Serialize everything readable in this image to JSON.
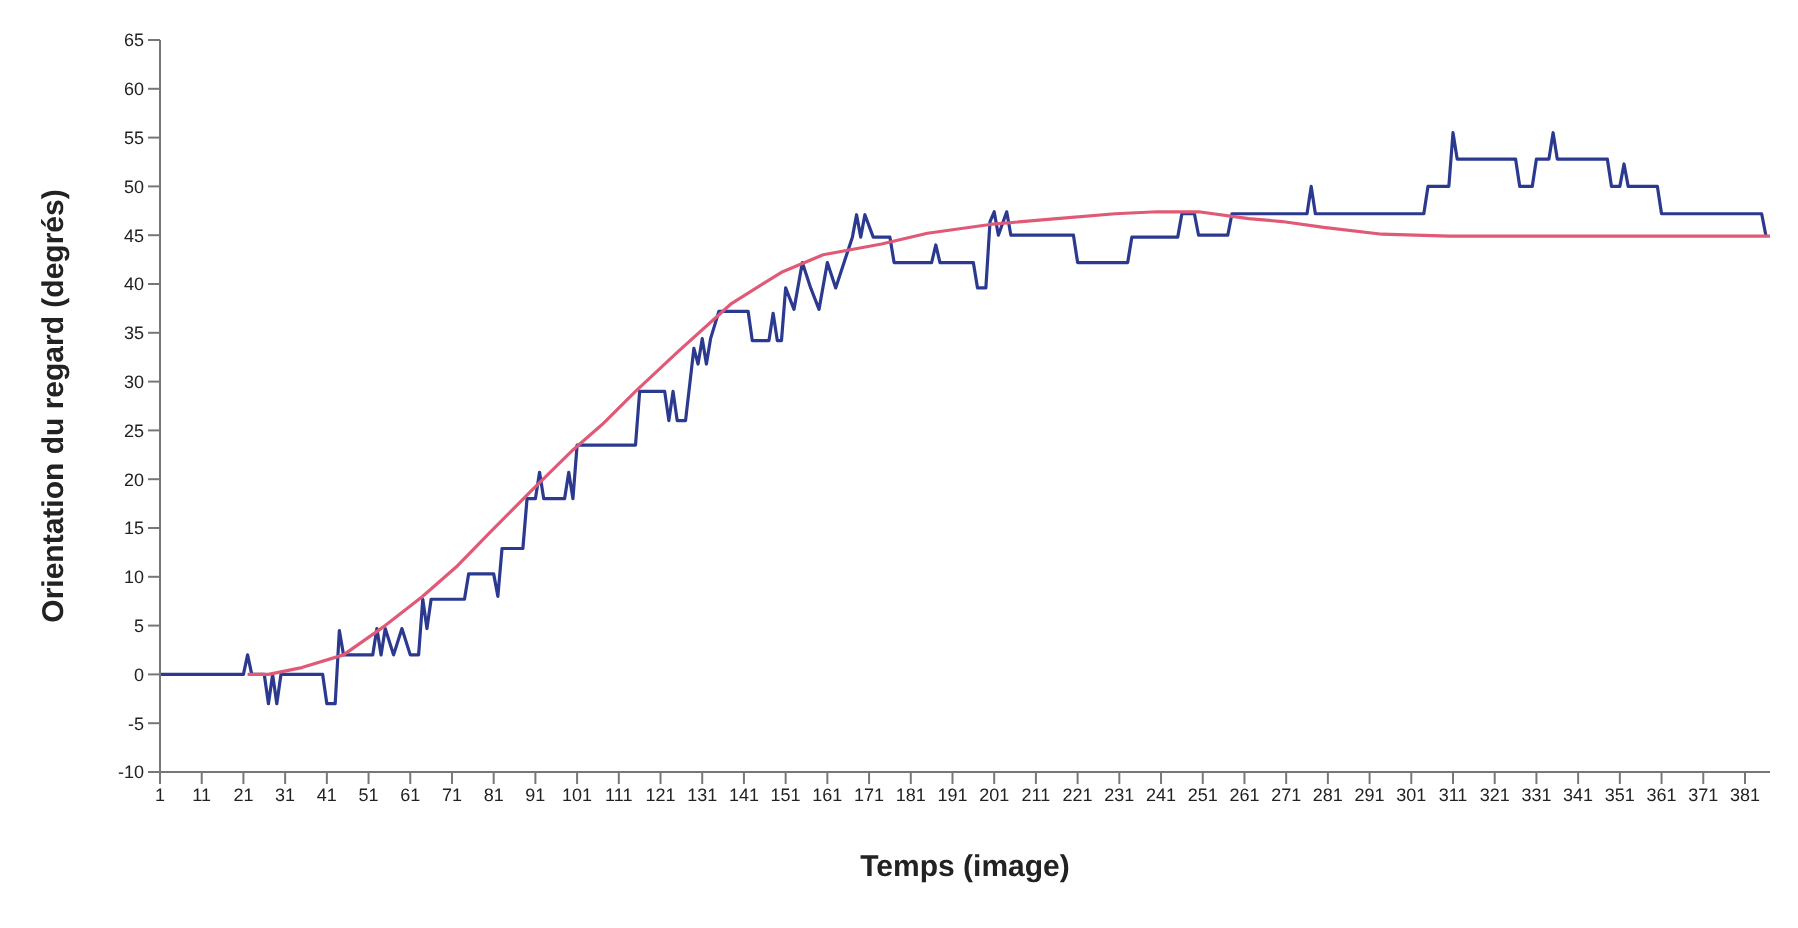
{
  "chart_data": {
    "type": "line",
    "xlabel": "Temps (image)",
    "ylabel": "Orientation du regard (degrés)",
    "xlim": [
      1,
      387
    ],
    "xticks": [
      1,
      11,
      21,
      31,
      41,
      51,
      61,
      71,
      81,
      91,
      101,
      111,
      121,
      131,
      141,
      151,
      161,
      171,
      181,
      191,
      201,
      211,
      221,
      231,
      241,
      251,
      261,
      271,
      281,
      291,
      301,
      311,
      321,
      331,
      341,
      351,
      361,
      371,
      381
    ],
    "ylim": [
      -10,
      65
    ],
    "yticks": [
      -10,
      -5,
      0,
      5,
      10,
      15,
      20,
      25,
      30,
      35,
      40,
      45,
      50,
      55,
      60,
      65
    ],
    "series": [
      {
        "color": "#2b3a8f",
        "x": [
          1,
          21,
          22,
          23,
          26,
          27,
          28,
          29,
          30,
          40,
          41,
          43,
          44,
          45,
          52,
          53,
          54,
          55,
          57,
          59,
          61,
          63,
          64,
          65,
          66,
          74,
          75,
          81,
          82,
          83,
          88,
          89,
          91,
          92,
          93,
          98,
          99,
          100,
          101,
          115,
          116,
          122,
          123,
          124,
          125,
          127,
          129,
          130,
          131,
          132,
          133,
          135,
          142,
          143,
          147,
          148,
          149,
          150,
          151,
          153,
          155,
          157,
          159,
          161,
          163,
          165,
          167,
          168,
          169,
          170,
          172,
          176,
          177,
          186,
          187,
          188,
          196,
          197,
          199,
          200,
          201,
          202,
          204,
          205,
          220,
          221,
          233,
          234,
          245,
          246,
          249,
          250,
          257,
          258,
          276,
          277,
          278,
          304,
          305,
          310,
          311,
          312,
          326,
          327,
          330,
          331,
          334,
          335,
          336,
          348,
          349,
          351,
          352,
          353,
          360,
          361,
          385,
          386
        ],
        "values": [
          0,
          0,
          2,
          0,
          0,
          -3,
          0,
          -3,
          0,
          0,
          -3,
          -3,
          4.5,
          2,
          2,
          4.7,
          2,
          4.7,
          2,
          4.7,
          2,
          2,
          7.7,
          4.7,
          7.7,
          7.7,
          10.3,
          10.3,
          8,
          12.9,
          12.9,
          18,
          18,
          20.7,
          18,
          18,
          20.7,
          18,
          23.5,
          23.5,
          29,
          29,
          26,
          29,
          26,
          26,
          33.4,
          31.8,
          34.4,
          31.8,
          34.4,
          37.2,
          37.2,
          34.2,
          34.2,
          37,
          34.2,
          34.2,
          39.6,
          37.4,
          42.2,
          39.6,
          37.4,
          42.2,
          39.6,
          42.2,
          44.8,
          47.1,
          44.8,
          47.1,
          44.8,
          44.8,
          42.2,
          42.2,
          44,
          42.2,
          42.2,
          39.6,
          39.6,
          46.4,
          47.4,
          45,
          47.4,
          45,
          45,
          42.2,
          42.2,
          44.8,
          44.8,
          47.2,
          47.2,
          45,
          45,
          47.2,
          47.2,
          50,
          47.2,
          47.2,
          50,
          50,
          55.5,
          52.8,
          52.8,
          50,
          50,
          52.8,
          52.8,
          55.5,
          52.8,
          52.8,
          50,
          50,
          52.3,
          50,
          50,
          47.2,
          47.2,
          45
        ]
      },
      {
        "color": "#e05a78",
        "x": [
          22,
          27,
          35,
          45,
          55,
          64,
          72,
          80,
          90,
          100,
          107,
          115,
          125,
          138,
          150,
          160,
          174,
          185,
          200,
          216,
          230,
          240,
          250,
          262,
          270,
          280,
          294,
          310,
          387
        ],
        "values": [
          0,
          0,
          0.7,
          2,
          5,
          8,
          11,
          14.5,
          18.8,
          23,
          25.6,
          29,
          33,
          38,
          41.2,
          43,
          44.1,
          45.2,
          46.1,
          46.7,
          47.2,
          47.4,
          47.4,
          46.7,
          46.4,
          45.8,
          45.1,
          44.9,
          44.9
        ]
      }
    ]
  }
}
